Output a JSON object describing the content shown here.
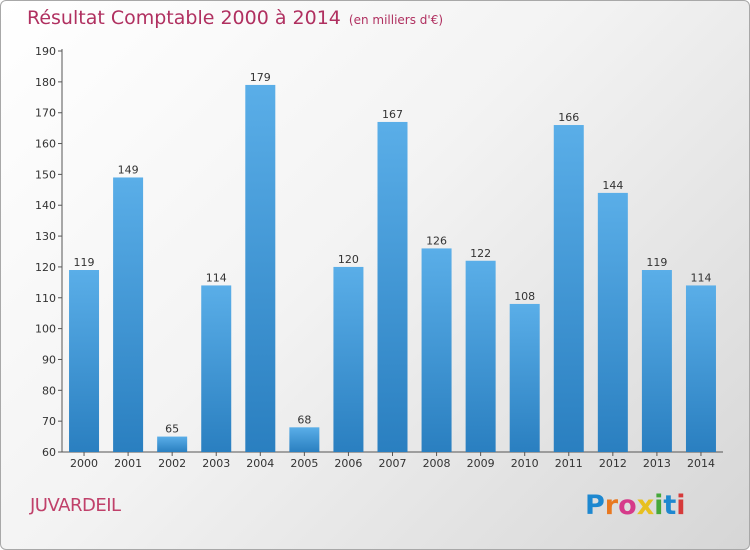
{
  "header": {
    "title": "Résultat Comptable 2000 à 2014",
    "subtitle": "(en milliers d'€)"
  },
  "footer": {
    "place": "JUVARDEIL",
    "logo": "Proxiti"
  },
  "colors": {
    "bar_top": "#5aaee8",
    "bar_bottom": "#2a7fc0",
    "title": "#b03060",
    "logo_letters": [
      "#1e88d0",
      "#e87820",
      "#d63a8a",
      "#e8c020",
      "#46a83a",
      "#1e88d0",
      "#d63a3a"
    ]
  },
  "chart_data": {
    "type": "bar",
    "title": "Résultat Comptable 2000 à 2014",
    "categories": [
      "2000",
      "2001",
      "2002",
      "2003",
      "2004",
      "2005",
      "2006",
      "2007",
      "2008",
      "2009",
      "2010",
      "2011",
      "2012",
      "2013",
      "2014"
    ],
    "values": [
      119,
      149,
      65,
      114,
      179,
      68,
      120,
      167,
      126,
      122,
      108,
      166,
      144,
      119,
      114
    ],
    "ylim": [
      60,
      190
    ],
    "yticks": [
      60,
      70,
      80,
      90,
      100,
      110,
      120,
      130,
      140,
      150,
      160,
      170,
      180,
      190
    ],
    "grid": false,
    "data_labels": true
  }
}
